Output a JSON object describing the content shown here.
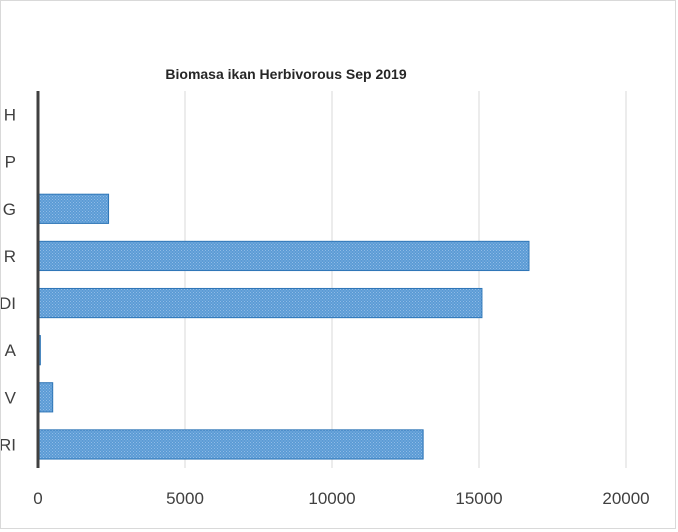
{
  "chart_data": {
    "type": "bar",
    "orientation": "horizontal",
    "title": "Biomasa ikan Herbivorous Sep 2019",
    "categories": [
      "H",
      "P",
      "G",
      "R",
      "DI",
      "A",
      "V",
      "RI"
    ],
    "values": [
      0,
      0,
      2400,
      16700,
      15100,
      80,
      500,
      13100
    ],
    "xlim": [
      0,
      20000
    ],
    "xticks": [
      "0",
      "5000",
      "10000",
      "15000",
      "20000"
    ],
    "grid": true,
    "legend": "none",
    "bar_color": "#5b9bd5",
    "bar_edge_color": "#2e75b6"
  }
}
